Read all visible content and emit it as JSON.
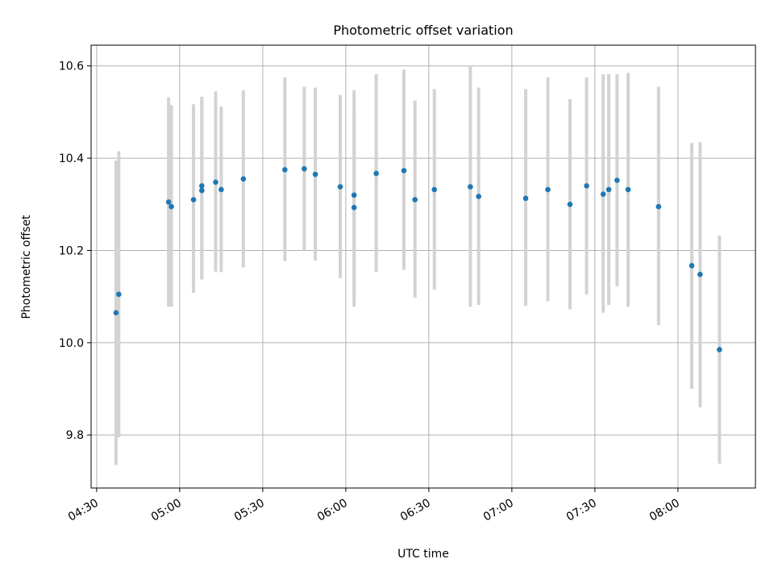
{
  "chart_data": {
    "type": "scatter",
    "title": "Photometric offset variation",
    "xlabel": "UTC time",
    "ylabel": "Photometric offset",
    "x_ticks": [
      "04:30",
      "05:00",
      "05:30",
      "06:00",
      "06:30",
      "07:00",
      "07:30",
      "08:00"
    ],
    "y_ticks": [
      "9.8",
      "10.0",
      "10.2",
      "10.4",
      "10.6"
    ],
    "x_range": [
      "04:28",
      "08:28"
    ],
    "ylim": [
      9.685,
      10.645
    ],
    "grid": true,
    "marker_color": "#1f77b4",
    "errorbar_color": "#d3d3d3",
    "points": [
      {
        "time": "04:37",
        "y": 10.065,
        "err_low": 9.735,
        "err_high": 10.395
      },
      {
        "time": "04:38",
        "y": 10.105,
        "err_low": 9.795,
        "err_high": 10.415
      },
      {
        "time": "04:56",
        "y": 10.305,
        "err_low": 10.078,
        "err_high": 10.532
      },
      {
        "time": "04:57",
        "y": 10.295,
        "err_low": 10.078,
        "err_high": 10.515
      },
      {
        "time": "05:05",
        "y": 10.31,
        "err_low": 10.108,
        "err_high": 10.517
      },
      {
        "time": "05:08",
        "y": 10.34,
        "err_low": 10.137,
        "err_high": 10.533
      },
      {
        "time": "05:08",
        "y": 10.33,
        "err_low": 10.138,
        "err_high": 10.522
      },
      {
        "time": "05:13",
        "y": 10.348,
        "err_low": 10.154,
        "err_high": 10.545
      },
      {
        "time": "05:15",
        "y": 10.332,
        "err_low": 10.153,
        "err_high": 10.512
      },
      {
        "time": "05:23",
        "y": 10.355,
        "err_low": 10.163,
        "err_high": 10.547
      },
      {
        "time": "05:38",
        "y": 10.375,
        "err_low": 10.177,
        "err_high": 10.575
      },
      {
        "time": "05:45",
        "y": 10.377,
        "err_low": 10.2,
        "err_high": 10.555
      },
      {
        "time": "05:49",
        "y": 10.365,
        "err_low": 10.178,
        "err_high": 10.553
      },
      {
        "time": "05:58",
        "y": 10.338,
        "err_low": 10.14,
        "err_high": 10.537
      },
      {
        "time": "06:03",
        "y": 10.293,
        "err_low": 10.078,
        "err_high": 10.508
      },
      {
        "time": "06:03",
        "y": 10.32,
        "err_low": 10.1,
        "err_high": 10.547
      },
      {
        "time": "06:11",
        "y": 10.367,
        "err_low": 10.153,
        "err_high": 10.582
      },
      {
        "time": "06:21",
        "y": 10.373,
        "err_low": 10.158,
        "err_high": 10.592
      },
      {
        "time": "06:25",
        "y": 10.31,
        "err_low": 10.098,
        "err_high": 10.525
      },
      {
        "time": "06:32",
        "y": 10.332,
        "err_low": 10.115,
        "err_high": 10.55
      },
      {
        "time": "06:45",
        "y": 10.338,
        "err_low": 10.078,
        "err_high": 10.6
      },
      {
        "time": "06:48",
        "y": 10.317,
        "err_low": 10.082,
        "err_high": 10.553
      },
      {
        "time": "07:05",
        "y": 10.313,
        "err_low": 10.08,
        "err_high": 10.55
      },
      {
        "time": "07:13",
        "y": 10.332,
        "err_low": 10.09,
        "err_high": 10.575
      },
      {
        "time": "07:21",
        "y": 10.3,
        "err_low": 10.072,
        "err_high": 10.528
      },
      {
        "time": "07:27",
        "y": 10.34,
        "err_low": 10.105,
        "err_high": 10.575
      },
      {
        "time": "07:33",
        "y": 10.322,
        "err_low": 10.065,
        "err_high": 10.582
      },
      {
        "time": "07:35",
        "y": 10.332,
        "err_low": 10.082,
        "err_high": 10.582
      },
      {
        "time": "07:38",
        "y": 10.352,
        "err_low": 10.122,
        "err_high": 10.582
      },
      {
        "time": "07:42",
        "y": 10.332,
        "err_low": 10.078,
        "err_high": 10.585
      },
      {
        "time": "07:53",
        "y": 10.295,
        "err_low": 10.038,
        "err_high": 10.555
      },
      {
        "time": "08:05",
        "y": 10.167,
        "err_low": 9.9,
        "err_high": 10.433
      },
      {
        "time": "08:08",
        "y": 10.148,
        "err_low": 9.86,
        "err_high": 10.435
      },
      {
        "time": "08:15",
        "y": 9.985,
        "err_low": 9.738,
        "err_high": 10.232
      }
    ]
  }
}
